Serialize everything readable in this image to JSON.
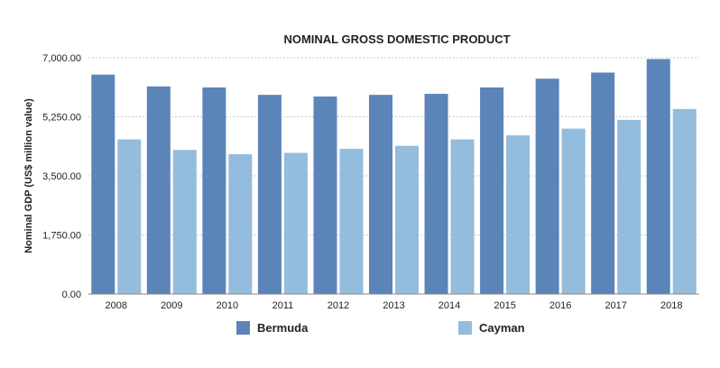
{
  "chart_data": {
    "type": "bar",
    "title": "NOMINAL GROSS DOMESTIC PRODUCT",
    "ylabel": "Nominal GDP (US$ million value)",
    "xlabel": "",
    "ylim": [
      0,
      7000
    ],
    "yticks": [
      "0.00",
      "1,750.00",
      "3,500.00",
      "5,250.00",
      "7,000.00"
    ],
    "ytick_values": [
      0,
      1750,
      3500,
      5250,
      7000
    ],
    "grid": true,
    "legend_position": "bottom",
    "categories": [
      "2008",
      "2009",
      "2010",
      "2011",
      "2012",
      "2013",
      "2014",
      "2015",
      "2016",
      "2017",
      "2018"
    ],
    "series": [
      {
        "name": "Bermuda",
        "color": "#5b84b8",
        "values": [
          6500,
          6150,
          6120,
          5900,
          5850,
          5900,
          5930,
          6120,
          6380,
          6560,
          6960
        ]
      },
      {
        "name": "Cayman",
        "color": "#94bcdc",
        "values": [
          4580,
          4270,
          4140,
          4180,
          4300,
          4390,
          4580,
          4700,
          4900,
          5160,
          5480
        ]
      }
    ]
  }
}
